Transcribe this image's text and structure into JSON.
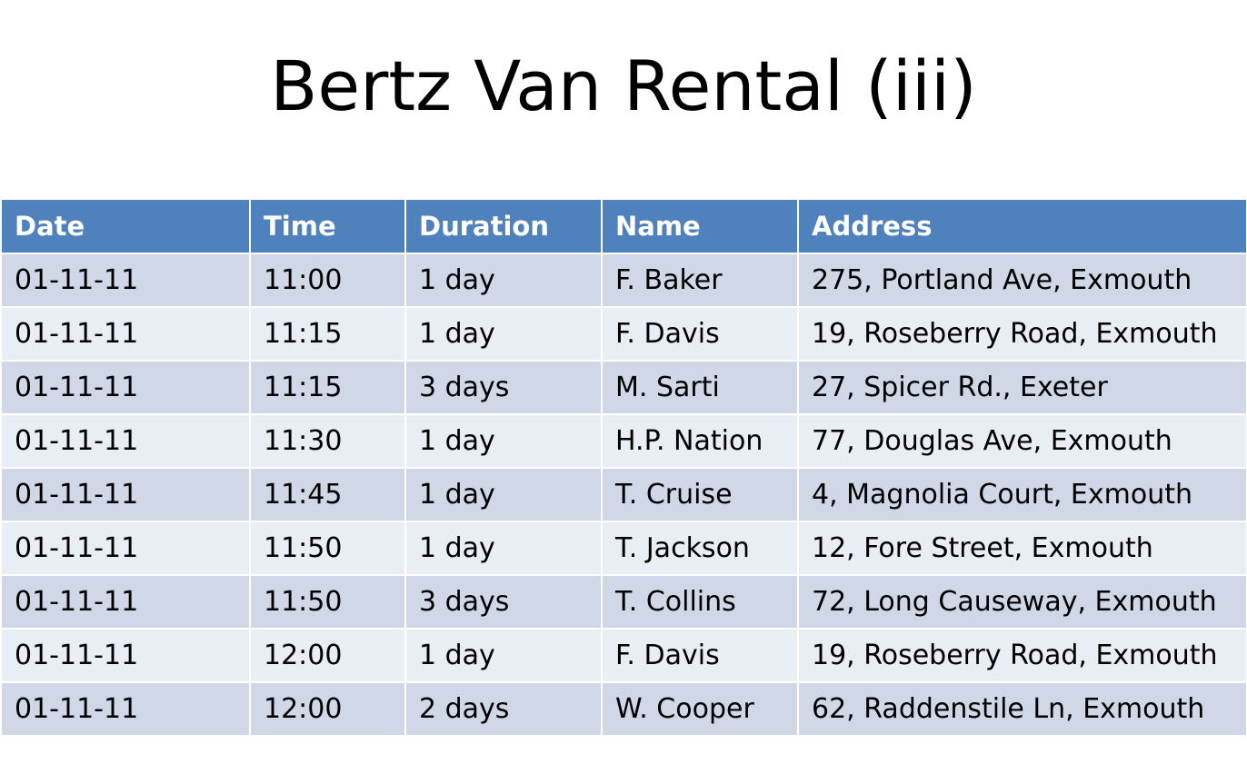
{
  "title": "Bertz Van Rental (iii)",
  "colors": {
    "header_bg": "#4f81bd",
    "row_dark": "#d0d8e8",
    "row_light": "#e9edf4"
  },
  "table": {
    "headers": [
      "Date",
      "Time",
      "Duration",
      "Name",
      "Address"
    ],
    "rows": [
      [
        "01-11-11",
        "11:00",
        "1 day",
        "F. Baker",
        "275, Portland Ave, Exmouth"
      ],
      [
        "01-11-11",
        "11:15",
        "1 day",
        "F. Davis",
        "19, Roseberry Road, Exmouth"
      ],
      [
        "01-11-11",
        "11:15",
        "3 days",
        "M. Sarti",
        "27, Spicer Rd., Exeter"
      ],
      [
        "01-11-11",
        "11:30",
        "1 day",
        "H.P. Nation",
        "77, Douglas Ave, Exmouth"
      ],
      [
        "01-11-11",
        "11:45",
        "1 day",
        "T. Cruise",
        "4, Magnolia Court, Exmouth"
      ],
      [
        "01-11-11",
        "11:50",
        "1 day",
        "T. Jackson",
        "12, Fore Street, Exmouth"
      ],
      [
        "01-11-11",
        "11:50",
        "3 days",
        "T. Collins",
        "72, Long Causeway, Exmouth"
      ],
      [
        "01-11-11",
        "12:00",
        "1 day",
        "F. Davis",
        "19, Roseberry Road, Exmouth"
      ],
      [
        "01-11-11",
        "12:00",
        "2 days",
        "W. Cooper",
        "62, Raddenstile Ln, Exmouth"
      ]
    ]
  }
}
